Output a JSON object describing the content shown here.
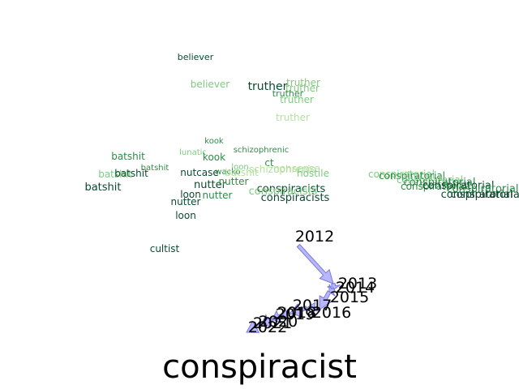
{
  "title": "conspiracist",
  "colors": {
    "dark": "#0b4a2e",
    "mid": "#2e8b45",
    "light": "#7fc97f",
    "pale": "#b5e0a0",
    "arrow_fill": "#aaaaff",
    "arrow_stroke": "#7a7ad8"
  },
  "words": [
    {
      "text": "believer",
      "tone": "dark",
      "size": 11
    },
    {
      "text": "believer",
      "tone": "light",
      "size": 12
    },
    {
      "text": "truther",
      "tone": "dark",
      "size": 14
    },
    {
      "text": "truther",
      "tone": "light",
      "size": 12
    },
    {
      "text": "truther",
      "tone": "light",
      "size": 12
    },
    {
      "text": "truther",
      "tone": "mid",
      "size": 11
    },
    {
      "text": "truther",
      "tone": "light",
      "size": 12
    },
    {
      "text": "truther",
      "tone": "pale",
      "size": 12
    },
    {
      "text": "kook",
      "tone": "mid",
      "size": 10
    },
    {
      "text": "schizophrenic",
      "tone": "mid",
      "size": 10
    },
    {
      "text": "batshit",
      "tone": "mid",
      "size": 12
    },
    {
      "text": "lunatic",
      "tone": "light",
      "size": 10
    },
    {
      "text": "kook",
      "tone": "mid",
      "size": 12
    },
    {
      "text": "batshit",
      "tone": "mid",
      "size": 10
    },
    {
      "text": "ct",
      "tone": "mid",
      "size": 12
    },
    {
      "text": "loon",
      "tone": "light",
      "size": 10
    },
    {
      "text": "batshit",
      "tone": "light",
      "size": 12
    },
    {
      "text": "batshit",
      "tone": "dark",
      "size": 12
    },
    {
      "text": "nutcase",
      "tone": "dark",
      "size": 12
    },
    {
      "text": "wacko",
      "tone": "mid",
      "size": 10
    },
    {
      "text": "batshit",
      "tone": "pale",
      "size": 12
    },
    {
      "text": "schizophrenic",
      "tone": "pale",
      "size": 12
    },
    {
      "text": "nonsense",
      "tone": "pale",
      "size": 12
    },
    {
      "text": "hostile",
      "tone": "light",
      "size": 12
    },
    {
      "text": "conspiratorial",
      "tone": "light",
      "size": 12
    },
    {
      "text": "conspiratorial",
      "tone": "mid",
      "size": 12
    },
    {
      "text": "conspiratorial",
      "tone": "light",
      "size": 12
    },
    {
      "text": "batshit",
      "tone": "dark",
      "size": 13
    },
    {
      "text": "nutter",
      "tone": "dark",
      "size": 13
    },
    {
      "text": "nutter",
      "tone": "mid",
      "size": 12
    },
    {
      "text": "conspiracists",
      "tone": "dark",
      "size": 13
    },
    {
      "text": "conspiracists",
      "tone": "light",
      "size": 13
    },
    {
      "text": "conspiratorial",
      "tone": "mid",
      "size": 13
    },
    {
      "text": "conspiratorial",
      "tone": "mid",
      "size": 12
    },
    {
      "text": "conspiratorial",
      "tone": "dark",
      "size": 13
    },
    {
      "text": "conspiratorial",
      "tone": "mid",
      "size": 13
    },
    {
      "text": "loon",
      "tone": "dark",
      "size": 12
    },
    {
      "text": "nutter",
      "tone": "mid",
      "size": 12
    },
    {
      "text": "conspiracists",
      "tone": "dark",
      "size": 13
    },
    {
      "text": "conspiratorial",
      "tone": "dark",
      "size": 13
    },
    {
      "text": "conspiratorial",
      "tone": "dark",
      "size": 13
    },
    {
      "text": "nutter",
      "tone": "dark",
      "size": 12
    },
    {
      "text": "loon",
      "tone": "dark",
      "size": 12
    },
    {
      "text": "cultist",
      "tone": "dark",
      "size": 12
    }
  ],
  "years": [
    "2012",
    "2013",
    "2014",
    "2015",
    "2016",
    "2017",
    "2018",
    "2019",
    "2020",
    "2021",
    "2022"
  ]
}
